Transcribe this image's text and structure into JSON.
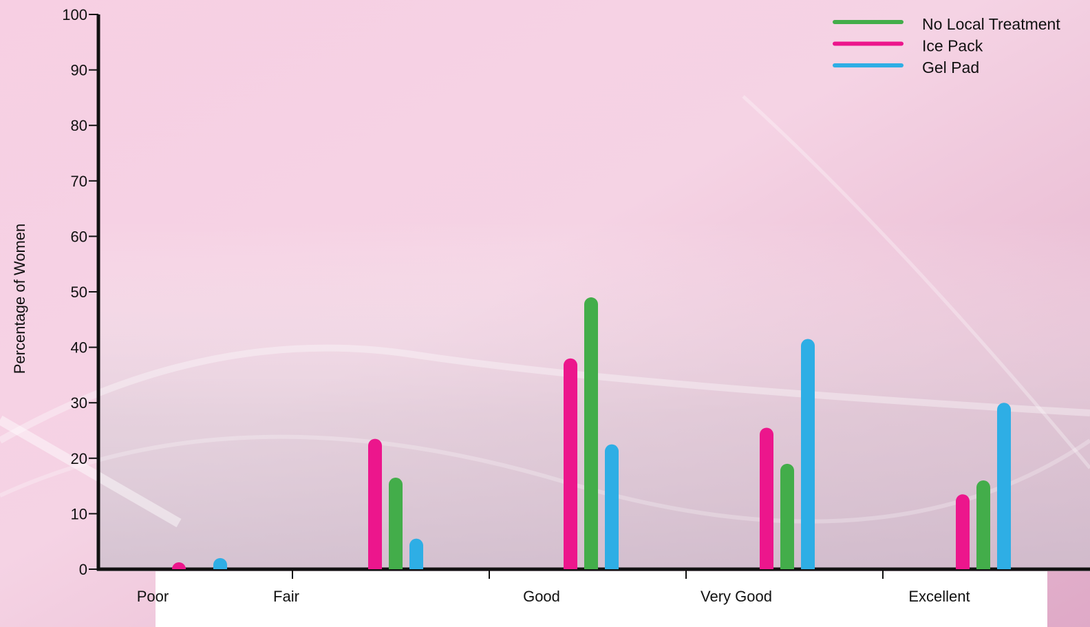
{
  "chart_data": {
    "type": "bar",
    "title": "",
    "xlabel": "",
    "ylabel": "Percentage of Women",
    "ylim": [
      0,
      100
    ],
    "yticks": [
      0,
      10,
      20,
      30,
      40,
      50,
      60,
      70,
      80,
      90,
      100
    ],
    "categories": [
      "Poor",
      "Fair",
      "Good",
      "Very Good",
      "Excellent"
    ],
    "series": [
      {
        "name": "Ice Pack",
        "color": "#ec168c",
        "values": [
          1,
          23.5,
          38,
          25.5,
          13.5
        ]
      },
      {
        "name": "No Local Treatment",
        "color": "#43ad4a",
        "values": [
          0,
          16.5,
          49,
          19,
          16
        ]
      },
      {
        "name": "Gel Pad",
        "color": "#2eaee5",
        "values": [
          2,
          5.5,
          22.5,
          41.5,
          30
        ]
      }
    ],
    "legend": {
      "position": "top-right",
      "order": [
        "No Local Treatment",
        "Ice Pack",
        "Gel Pad"
      ]
    },
    "grid": false,
    "background_color": "#f3c8dc",
    "axis_color": "#111111"
  }
}
